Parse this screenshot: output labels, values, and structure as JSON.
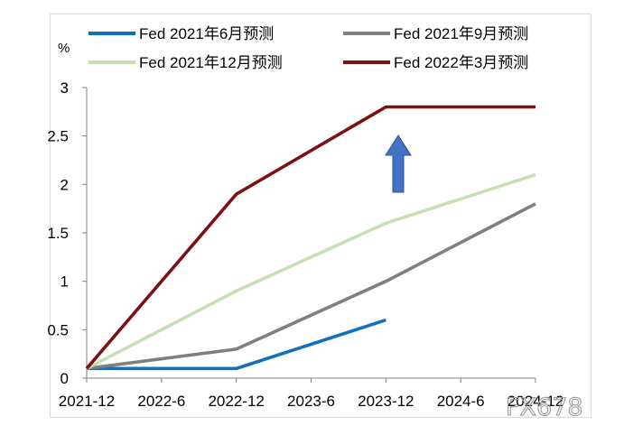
{
  "chart_data": {
    "type": "line",
    "ylabel": "%",
    "ylim": [
      0,
      3
    ],
    "yticks": [
      "0",
      "0.5",
      "1",
      "1.5",
      "2",
      "2.5",
      "3"
    ],
    "yvalues": [
      0,
      0.5,
      1,
      1.5,
      2,
      2.5,
      3
    ],
    "categories": [
      "2021-12",
      "2022-6",
      "2022-12",
      "2023-6",
      "2023-12",
      "2024-6",
      "2024-12"
    ],
    "series": [
      {
        "name": "Fed 2021年6月预测",
        "color": "#0f70c0",
        "x": [
          "2021-12",
          "2022-12",
          "2023-12"
        ],
        "values": [
          0.1,
          0.1,
          0.6
        ]
      },
      {
        "name": "Fed 2021年9月预测",
        "color": "#7f7f7f",
        "x": [
          "2021-12",
          "2022-12",
          "2023-12",
          "2024-12"
        ],
        "values": [
          0.1,
          0.3,
          1.0,
          1.8
        ]
      },
      {
        "name": "Fed 2021年12月预测",
        "color": "#c5e0b4",
        "x": [
          "2021-12",
          "2022-12",
          "2023-12",
          "2024-12"
        ],
        "values": [
          0.1,
          0.9,
          1.6,
          2.1
        ]
      },
      {
        "name": "Fed 2022年3月预测",
        "color": "#7b1112",
        "x": [
          "2021-12",
          "2022-12",
          "2023-12",
          "2024-12"
        ],
        "values": [
          0.1,
          1.9,
          2.8,
          2.8
        ]
      }
    ],
    "annotation": {
      "type": "arrow-up",
      "color": "#4472c4"
    },
    "grid": false,
    "legend_position": "top"
  },
  "watermark": "FX678"
}
